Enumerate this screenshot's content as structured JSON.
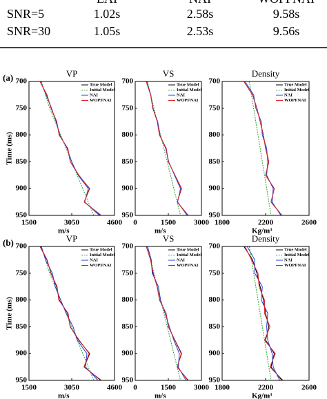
{
  "table": {
    "header": [
      "LAI",
      "NAI",
      "WOPFNAI"
    ],
    "rows": [
      [
        "SNR=5",
        "1.02s",
        "2.58s",
        "9.58s"
      ],
      [
        "SNR=30",
        "1.05s",
        "2.53s",
        "9.56s"
      ]
    ]
  },
  "panels": [
    {
      "label": "(a)",
      "chart_data": [
        {
          "type": "line",
          "title": "VP",
          "xlabel": "Time (ms)",
          "ylabel": "m/s",
          "x": [
            700,
            725,
            750,
            775,
            800,
            825,
            850,
            875,
            900,
            925,
            950
          ],
          "xlim": [
            700,
            950
          ],
          "xticks": [
            700,
            750,
            800,
            850,
            900,
            950
          ],
          "ylim": [
            1500,
            4600
          ],
          "yticks": [
            1500,
            3050,
            4600
          ],
          "series": [
            {
              "name": "True Model",
              "color": "#000000",
              "values": [
                1900,
                2150,
                2300,
                2500,
                2600,
                2900,
                3000,
                3300,
                3700,
                3500,
                4100
              ]
            },
            {
              "name": "Initial Model",
              "color": "#2ca02c",
              "values": [
                1950,
                2100,
                2250,
                2450,
                2650,
                2850,
                3050,
                3250,
                3450,
                3650,
                3850
              ]
            },
            {
              "name": "NAI",
              "color": "#1f3fd6",
              "values": [
                1920,
                2120,
                2320,
                2480,
                2620,
                2880,
                3050,
                3280,
                3650,
                3520,
                4050
              ]
            },
            {
              "name": "WOPFNAI",
              "color": "#e0202a",
              "values": [
                1900,
                2140,
                2300,
                2510,
                2590,
                2910,
                3000,
                3310,
                3690,
                3500,
                4120
              ]
            }
          ]
        },
        {
          "type": "line",
          "title": "VS",
          "ylabel": "m/s",
          "x": [
            700,
            725,
            750,
            775,
            800,
            825,
            850,
            875,
            900,
            925,
            950
          ],
          "xlim": [
            700,
            950
          ],
          "xticks": [
            700,
            750,
            800,
            850,
            900,
            950
          ],
          "ylim": [
            0,
            3000
          ],
          "yticks": [
            0,
            1500,
            3000
          ],
          "series": [
            {
              "name": "True Model",
              "color": "#000000",
              "values": [
                500,
                700,
                800,
                1000,
                1100,
                1400,
                1500,
                1800,
                2100,
                1900,
                2400
              ]
            },
            {
              "name": "Initial Model",
              "color": "#2ca02c",
              "values": [
                550,
                700,
                850,
                1000,
                1150,
                1300,
                1450,
                1600,
                1750,
                1900,
                2050
              ]
            },
            {
              "name": "NAI",
              "color": "#1f3fd6",
              "values": [
                520,
                710,
                790,
                1020,
                1120,
                1380,
                1520,
                1780,
                2050,
                1920,
                2350
              ]
            },
            {
              "name": "WOPFNAI",
              "color": "#e0202a",
              "values": [
                500,
                700,
                810,
                1000,
                1100,
                1410,
                1500,
                1800,
                2090,
                1900,
                2390
              ]
            }
          ]
        },
        {
          "type": "line",
          "title": "Density",
          "ylabel": "Kg/m³",
          "x": [
            700,
            725,
            750,
            775,
            800,
            825,
            850,
            875,
            900,
            925,
            950
          ],
          "xlim": [
            700,
            950
          ],
          "xticks": [
            700,
            750,
            800,
            850,
            900,
            950
          ],
          "ylim": [
            1800,
            2600
          ],
          "yticks": [
            1800,
            2200,
            2600
          ],
          "series": [
            {
              "name": "True Model",
              "color": "#000000",
              "values": [
                2000,
                2080,
                2120,
                2150,
                2180,
                2200,
                2230,
                2200,
                2280,
                2250,
                2350
              ]
            },
            {
              "name": "Initial Model",
              "color": "#2ca02c",
              "values": [
                2050,
                2070,
                2090,
                2110,
                2130,
                2150,
                2170,
                2190,
                2210,
                2230,
                2250
              ]
            },
            {
              "name": "NAI",
              "color": "#1f3fd6",
              "values": [
                2010,
                2090,
                2110,
                2160,
                2170,
                2210,
                2220,
                2210,
                2270,
                2260,
                2340
              ]
            },
            {
              "name": "WOPFNAI",
              "color": "#e0202a",
              "values": [
                2000,
                2080,
                2120,
                2150,
                2180,
                2200,
                2230,
                2200,
                2280,
                2250,
                2350
              ]
            }
          ]
        }
      ]
    },
    {
      "label": "(b)",
      "chart_data": [
        {
          "type": "line",
          "title": "VP",
          "xlabel": "Time (ms)",
          "ylabel": "m/s",
          "x": [
            700,
            725,
            750,
            775,
            800,
            825,
            850,
            875,
            900,
            925,
            950
          ],
          "xlim": [
            700,
            950
          ],
          "xticks": [
            700,
            750,
            800,
            850,
            900,
            950
          ],
          "ylim": [
            1500,
            4600
          ],
          "yticks": [
            1500,
            3050,
            4600
          ],
          "series": [
            {
              "name": "True Model",
              "color": "#000000",
              "values": [
                1900,
                2150,
                2300,
                2500,
                2600,
                2900,
                3000,
                3300,
                3700,
                3500,
                4100
              ]
            },
            {
              "name": "Initial Model",
              "color": "#2ca02c",
              "values": [
                1950,
                2100,
                2250,
                2450,
                2650,
                2850,
                3050,
                3250,
                3450,
                3650,
                3850
              ]
            },
            {
              "name": "NAI",
              "color": "#1f3fd6",
              "values": [
                1950,
                2100,
                2350,
                2450,
                2650,
                2850,
                3100,
                3250,
                3600,
                3550,
                4000
              ]
            },
            {
              "name": "WOPFNAI",
              "color": "#e0202a",
              "values": [
                1910,
                2160,
                2290,
                2520,
                2580,
                2920,
                2990,
                3320,
                3680,
                3490,
                4130
              ]
            }
          ]
        },
        {
          "type": "line",
          "title": "VS",
          "ylabel": "m/s",
          "x": [
            700,
            725,
            750,
            775,
            800,
            825,
            850,
            875,
            900,
            925,
            950
          ],
          "xlim": [
            700,
            950
          ],
          "xticks": [
            700,
            750,
            800,
            850,
            900,
            950
          ],
          "ylim": [
            0,
            3000
          ],
          "yticks": [
            0,
            1500,
            3000
          ],
          "series": [
            {
              "name": "True Model",
              "color": "#000000",
              "values": [
                500,
                700,
                800,
                1000,
                1100,
                1400,
                1500,
                1800,
                2100,
                1900,
                2400
              ]
            },
            {
              "name": "Initial Model",
              "color": "#2ca02c",
              "values": [
                550,
                700,
                850,
                1000,
                1150,
                1300,
                1450,
                1600,
                1750,
                1900,
                2050
              ]
            },
            {
              "name": "NAI",
              "color": "#1f3fd6",
              "values": [
                560,
                730,
                770,
                1050,
                1150,
                1350,
                1550,
                1750,
                2000,
                1950,
                2300
              ]
            },
            {
              "name": "WOPFNAI",
              "color": "#e0202a",
              "values": [
                510,
                690,
                820,
                990,
                1110,
                1400,
                1510,
                1790,
                2080,
                1910,
                2380
              ]
            }
          ]
        },
        {
          "type": "line",
          "title": "Density",
          "ylabel": "Kg/m³",
          "x": [
            700,
            725,
            750,
            775,
            800,
            825,
            850,
            875,
            900,
            925,
            950
          ],
          "xlim": [
            700,
            950
          ],
          "xticks": [
            700,
            750,
            800,
            850,
            900,
            950
          ],
          "ylim": [
            1800,
            2600
          ],
          "yticks": [
            1800,
            2200,
            2600
          ],
          "series": [
            {
              "name": "True Model",
              "color": "#000000",
              "values": [
                2000,
                2080,
                2120,
                2150,
                2180,
                2200,
                2230,
                2200,
                2280,
                2250,
                2350
              ]
            },
            {
              "name": "Initial Model",
              "color": "#2ca02c",
              "values": [
                2050,
                2070,
                2090,
                2110,
                2130,
                2150,
                2170,
                2190,
                2210,
                2230,
                2250
              ]
            },
            {
              "name": "NAI",
              "color": "#1f3fd6",
              "values": [
                2030,
                2100,
                2100,
                2170,
                2160,
                2220,
                2210,
                2220,
                2260,
                2270,
                2330
              ]
            },
            {
              "name": "WOPFNAI",
              "color": "#e0202a",
              "values": [
                2010,
                2070,
                2130,
                2140,
                2190,
                2190,
                2240,
                2190,
                2290,
                2240,
                2360
              ]
            }
          ]
        }
      ]
    }
  ]
}
